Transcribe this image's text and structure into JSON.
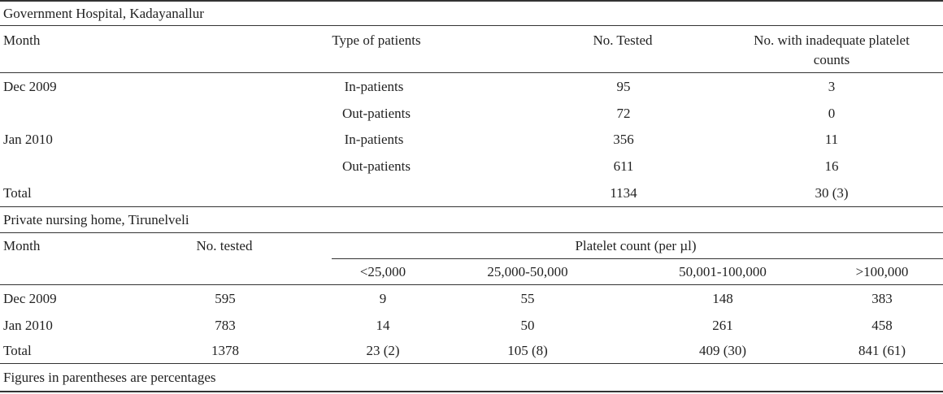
{
  "section1": {
    "title": "Government Hospital, Kadayanallur",
    "headers": {
      "month": "Month",
      "type": "Type of patients",
      "tested": "No. Tested",
      "inadequate_line1": "No. with inadequate platelet",
      "inadequate_line2": "counts"
    },
    "rows": [
      {
        "month": "Dec 2009",
        "type": "In-patients",
        "tested": "95",
        "inadequate": "3"
      },
      {
        "month": "",
        "type": "Out-patients",
        "tested": "72",
        "inadequate": "0"
      },
      {
        "month": "Jan 2010",
        "type": "In-patients",
        "tested": "356",
        "inadequate": "11"
      },
      {
        "month": "",
        "type": "Out-patients",
        "tested": "611",
        "inadequate": "16"
      }
    ],
    "total": {
      "label": "Total",
      "tested": "1134",
      "inadequate": "30 (3)"
    }
  },
  "section2": {
    "title": "Private nursing home, Tirunelveli",
    "headers": {
      "month": "Month",
      "tested": "No. tested",
      "platelet": "Platelet count (per µl)",
      "sub": [
        "<25,000",
        "25,000-50,000",
        "50,001-100,000",
        ">100,000"
      ]
    },
    "rows": [
      {
        "month": "Dec 2009",
        "tested": "595",
        "vals": [
          "9",
          "55",
          "148",
          "383"
        ]
      },
      {
        "month": "Jan 2010",
        "tested": "783",
        "vals": [
          "14",
          "50",
          "261",
          "458"
        ]
      }
    ],
    "total": {
      "label": "Total",
      "tested": "1378",
      "vals": [
        "23 (2)",
        "105 (8)",
        "409 (30)",
        "841 (61)"
      ]
    }
  },
  "footnote": "Figures in parentheses are percentages"
}
